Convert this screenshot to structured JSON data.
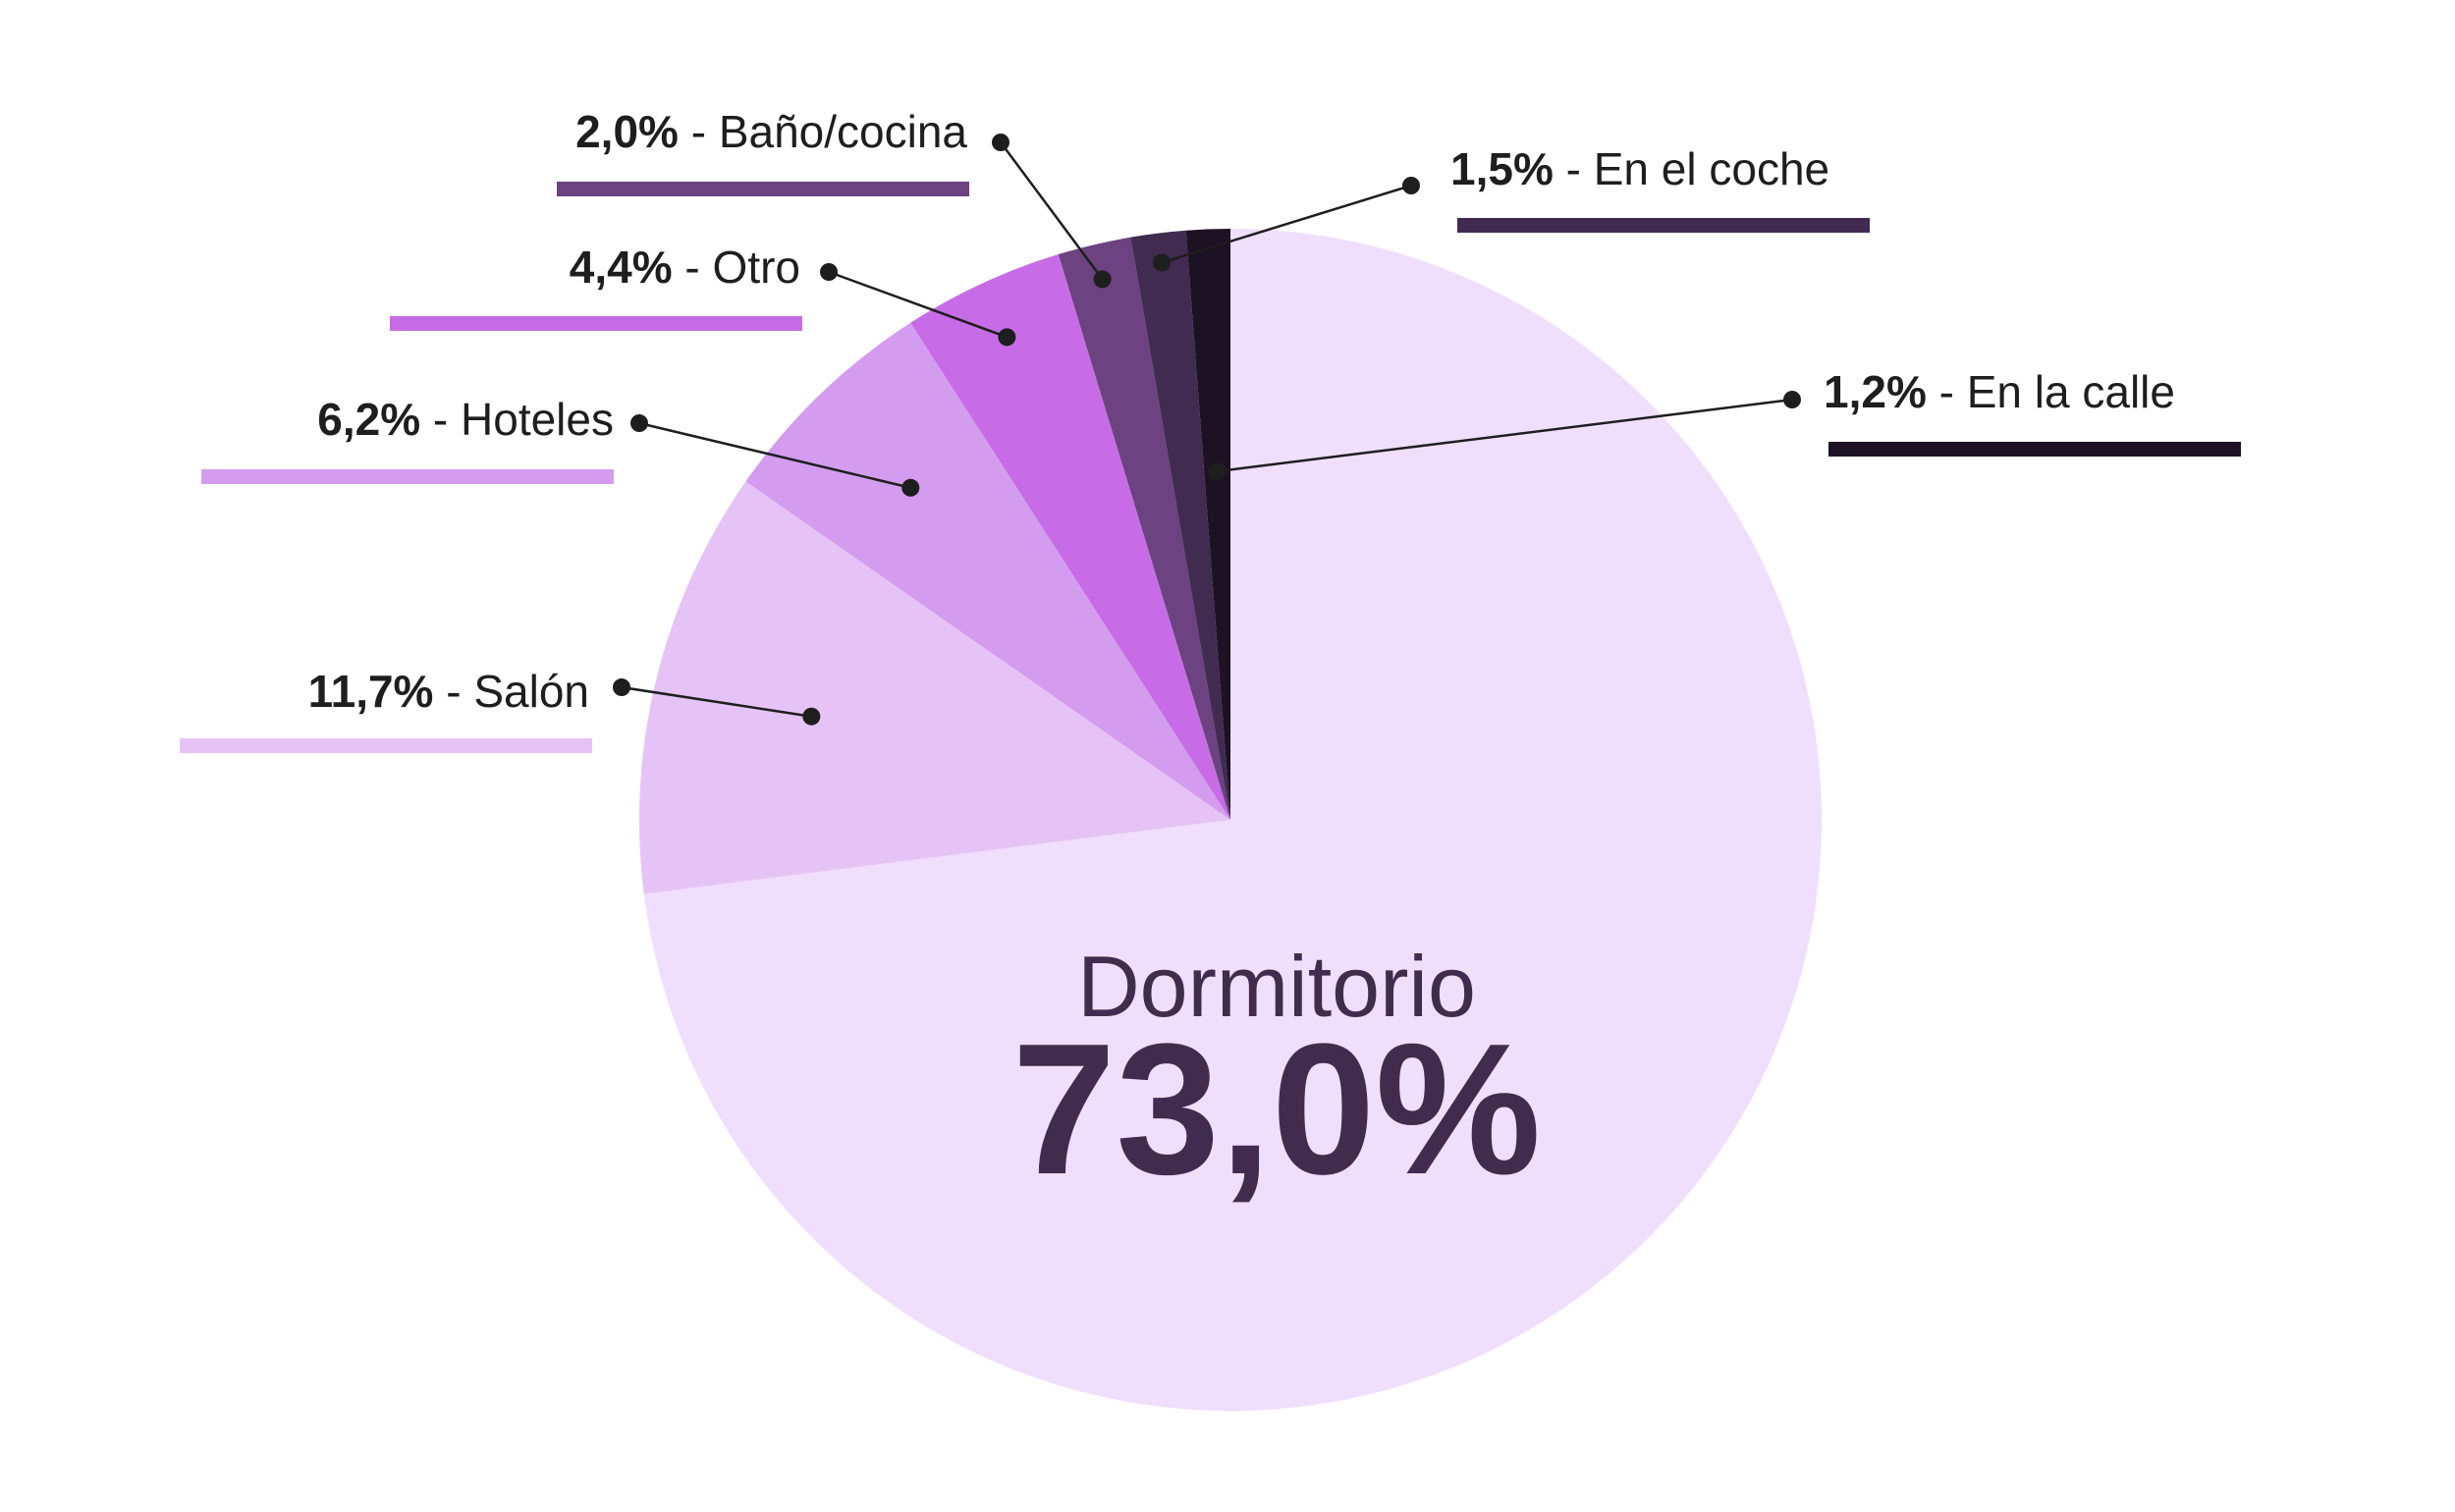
{
  "chart_data": {
    "type": "pie",
    "start": "top",
    "direction": "clockwise",
    "slices": [
      {
        "name": "Dormitorio",
        "value": 73.0,
        "pct_label": "73,0%",
        "color": "#f0defd"
      },
      {
        "name": "Salón",
        "value": 11.7,
        "pct_label": "11,7%",
        "color": "#e6c3f6"
      },
      {
        "name": "Hoteles",
        "value": 6.2,
        "pct_label": "6,2%",
        "color": "#d49cee"
      },
      {
        "name": "Otro",
        "value": 4.4,
        "pct_label": "4,4%",
        "color": "#c76ce6"
      },
      {
        "name": "Baño/cocina",
        "value": 2.0,
        "pct_label": "2,0%",
        "color": "#6c4280"
      },
      {
        "name": "En el coche",
        "value": 1.5,
        "pct_label": "1,5%",
        "color": "#412b51"
      },
      {
        "name": "En la calle",
        "value": 1.2,
        "pct_label": "1,2%",
        "color": "#1c1224"
      }
    ],
    "separator": " - ",
    "center_label": {
      "name": "Dormitorio",
      "value": "73,0%"
    },
    "line_color": "#1e1e1e"
  }
}
